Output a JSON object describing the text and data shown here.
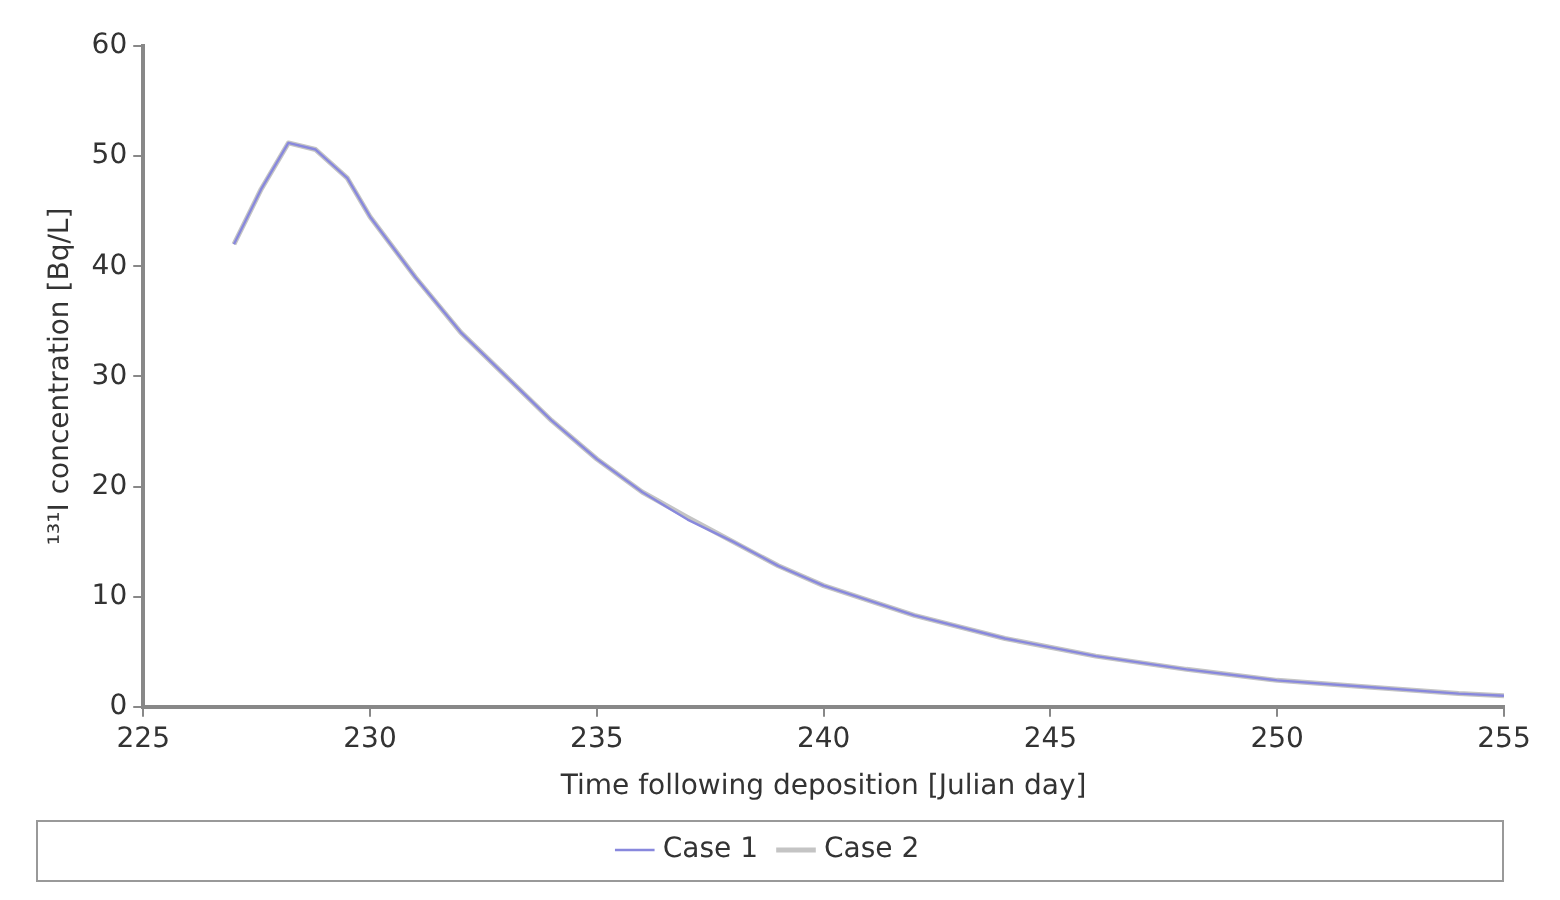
{
  "chart_data": {
    "type": "line",
    "xlabel": "Time following deposition [Julian day]",
    "ylabel": "¹³¹I concentration [Bq/L]",
    "x": [
      227,
      227.6,
      228.2,
      228.8,
      229.5,
      230,
      231,
      232,
      233,
      234,
      235,
      236,
      237,
      238,
      239,
      240,
      242,
      244,
      246,
      248,
      250,
      252,
      254,
      255
    ],
    "series": [
      {
        "name": "Case 1",
        "color": "#8888dd",
        "values": [
          42,
          47,
          51.2,
          50.6,
          48,
          44.5,
          39,
          34,
          30,
          26,
          22.5,
          19.5,
          17,
          15,
          12.8,
          11,
          8.3,
          6.2,
          4.6,
          3.4,
          2.4,
          1.8,
          1.2,
          1
        ]
      },
      {
        "name": "Case 2",
        "color": "#c4c4c4",
        "values": [
          42,
          47,
          51.2,
          50.6,
          48,
          44.5,
          39,
          34,
          30,
          26,
          22.5,
          19.5,
          17.2,
          15,
          12.8,
          11,
          8.3,
          6.2,
          4.6,
          3.4,
          2.4,
          1.8,
          1.2,
          1
        ]
      }
    ],
    "xlim": [
      225,
      255
    ],
    "xticks": [
      225,
      230,
      235,
      240,
      245,
      250,
      255
    ],
    "ylim": [
      0,
      60
    ],
    "yticks": [
      0,
      10,
      20,
      30,
      40,
      50,
      60
    ],
    "grid": false,
    "legend": "bottom",
    "marker": "none",
    "line_style": "solid"
  }
}
